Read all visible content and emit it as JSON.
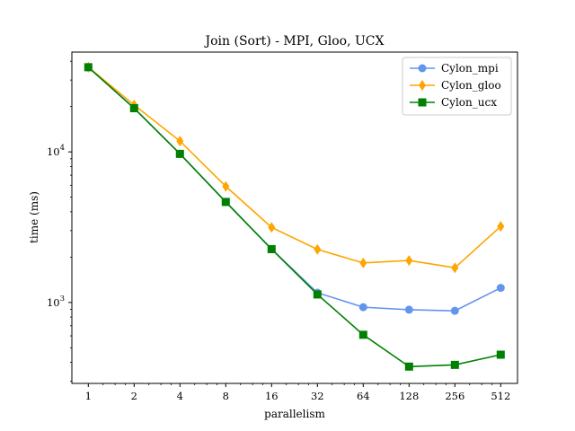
{
  "chart_data": {
    "type": "line",
    "title": "Join (Sort) - MPI, Gloo, UCX",
    "xlabel": "parallelism",
    "ylabel": "time (ms)",
    "x_scale": "log2",
    "y_scale": "log10",
    "xlim": [
      0.78,
      660
    ],
    "ylim": [
      290,
      46000
    ],
    "x": [
      1,
      2,
      4,
      8,
      16,
      32,
      64,
      128,
      256,
      512
    ],
    "x_tick_labels": [
      "1",
      "2",
      "4",
      "8",
      "16",
      "32",
      "64",
      "128",
      "256",
      "512"
    ],
    "y_major_ticks": [
      {
        "value": 1000,
        "base": "10",
        "exp": "3"
      },
      {
        "value": 10000,
        "base": "10",
        "exp": "4"
      }
    ],
    "grid": false,
    "legend_position": "top-right",
    "series": [
      {
        "name": "Cylon_mpi",
        "color": "#6495ED",
        "marker": "circle",
        "values": [
          36500,
          19500,
          9700,
          4650,
          2260,
          1160,
          930,
          895,
          880,
          1250
        ]
      },
      {
        "name": "Cylon_gloo",
        "color": "#FFA500",
        "marker": "diamond",
        "values": [
          36500,
          20500,
          11800,
          5900,
          3150,
          2250,
          1830,
          1900,
          1700,
          3200
        ]
      },
      {
        "name": "Cylon_ucx",
        "color": "#008000",
        "marker": "square",
        "values": [
          36500,
          19500,
          9700,
          4650,
          2260,
          1130,
          610,
          375,
          385,
          450
        ]
      }
    ]
  }
}
